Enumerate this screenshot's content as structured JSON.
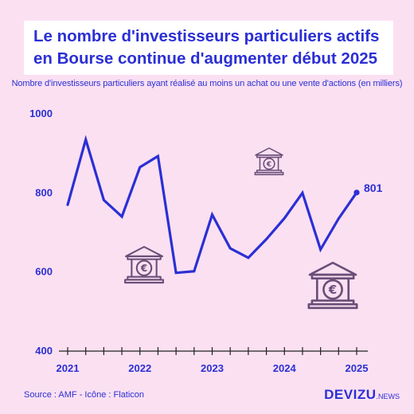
{
  "title_lines": [
    "Le nombre d'investisseurs particuliers actifs",
    "en Bourse continue d'augmenter début 2025"
  ],
  "subtitle": "Nombre d'investisseurs particuliers ayant réalisé au moins un achat ou une vente d'actions (en milliers)",
  "source": "Source : AMF - Icône : Flaticon",
  "brand": {
    "name": "DEVIZU",
    "suffix": ".NEWS"
  },
  "colors": {
    "background": "#fbe0f2",
    "accent": "#2b2fd4",
    "icon": "#6b4e78"
  },
  "icons": [
    "bank-euro-icon",
    "bank-euro-icon",
    "bank-euro-icon"
  ],
  "chart_data": {
    "type": "line",
    "title": "",
    "xlabel": "",
    "ylabel": "",
    "ylim": [
      400,
      1000
    ],
    "yticks": [
      400,
      600,
      800,
      1000
    ],
    "xticks": [
      "2021",
      "2022",
      "2023",
      "2024",
      "2025"
    ],
    "grid": false,
    "series": [
      {
        "x": [
          2021.0,
          2021.25,
          2021.5,
          2021.75,
          2022.0,
          2022.25,
          2022.5,
          2022.75,
          2023.0,
          2023.25,
          2023.5,
          2023.75,
          2024.0,
          2024.25,
          2024.5,
          2024.75,
          2025.0
        ],
        "values": [
          770,
          935,
          782,
          740,
          865,
          893,
          598,
          602,
          745,
          660,
          636,
          683,
          736,
          800,
          657,
          735,
          801
        ]
      }
    ],
    "end_label": "801"
  }
}
